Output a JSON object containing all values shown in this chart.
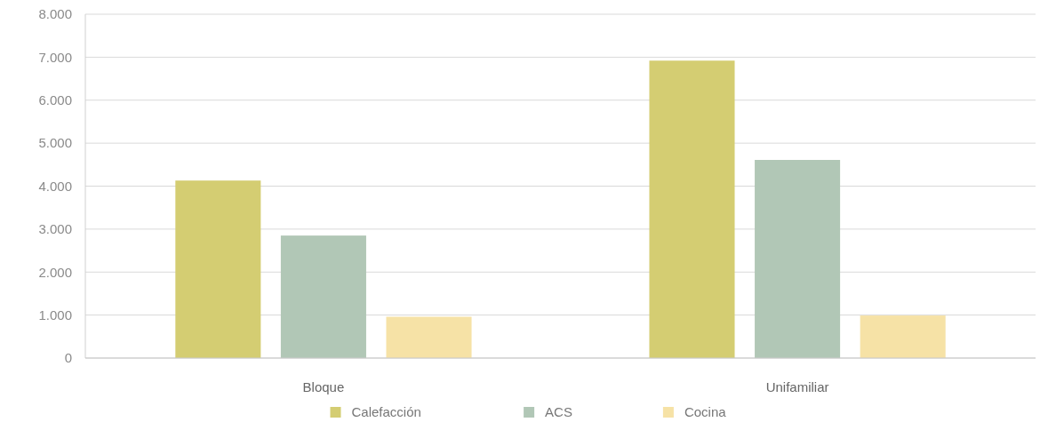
{
  "chart_data": {
    "type": "bar",
    "categories": [
      "Bloque",
      "Unifamiliar"
    ],
    "series": [
      {
        "name": "Calefacción",
        "color": "#d4cd72",
        "values": [
          4130,
          6920
        ]
      },
      {
        "name": "ACS",
        "color": "#b1c7b6",
        "values": [
          2850,
          4610
        ]
      },
      {
        "name": "Cocina",
        "color": "#f6e2a6",
        "values": [
          960,
          990
        ]
      }
    ],
    "ylim": [
      0,
      8000
    ],
    "yticks": [
      0,
      {
        "value": 1000,
        "label": "1.000"
      },
      {
        "value": 2000,
        "label": "2.000"
      },
      {
        "value": 3000,
        "label": "3.000"
      },
      {
        "value": 4000,
        "label": "4.000"
      },
      {
        "value": 5000,
        "label": "5.000"
      },
      {
        "value": 6000,
        "label": "6.000"
      },
      {
        "value": 7000,
        "label": "7.000"
      },
      {
        "value": 8000,
        "label": "8.000"
      }
    ],
    "grid": "y",
    "legend": "bottom"
  }
}
